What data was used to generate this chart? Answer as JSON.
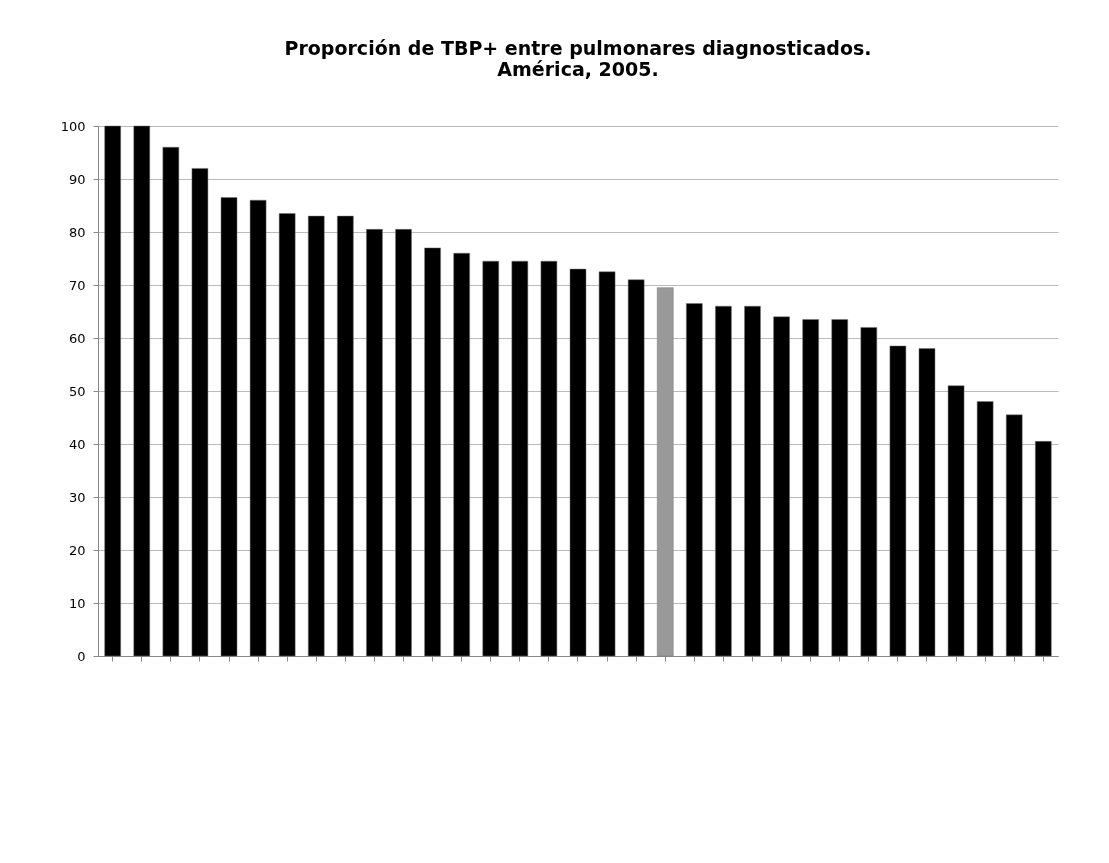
{
  "chart_data": {
    "type": "bar",
    "title": [
      "Proporción de TBP+ entre pulmonares diagnosticados.",
      "América, 2005."
    ],
    "categories": [
      null,
      null,
      null,
      null,
      null,
      null,
      null,
      null,
      null,
      null,
      null,
      null,
      null,
      null,
      null,
      null,
      null,
      null,
      null,
      null,
      null,
      null,
      null,
      null,
      null,
      null,
      null,
      null,
      null,
      null,
      null,
      null,
      null
    ],
    "values": [
      100,
      100,
      96,
      92,
      86.5,
      86,
      83.5,
      83,
      83,
      80.5,
      80.5,
      77,
      76,
      74.5,
      74.5,
      74.5,
      73,
      72.5,
      71,
      69.5,
      66.5,
      66,
      66,
      64,
      63.5,
      63.5,
      62,
      58.5,
      58,
      51,
      48,
      45.5,
      40.5
    ],
    "colors": [
      "#000000",
      "#000000",
      "#000000",
      "#000000",
      "#000000",
      "#000000",
      "#000000",
      "#000000",
      "#000000",
      "#000000",
      "#000000",
      "#000000",
      "#000000",
      "#000000",
      "#000000",
      "#000000",
      "#000000",
      "#000000",
      "#000000",
      "#999999",
      "#000000",
      "#000000",
      "#000000",
      "#000000",
      "#000000",
      "#000000",
      "#000000",
      "#000000",
      "#000000",
      "#000000",
      "#000000",
      "#000000",
      "#000000"
    ],
    "ylim": [
      0,
      100
    ],
    "yticks": [
      0,
      10,
      20,
      30,
      40,
      50,
      60,
      70,
      80,
      90,
      100
    ],
    "grid": "y"
  }
}
